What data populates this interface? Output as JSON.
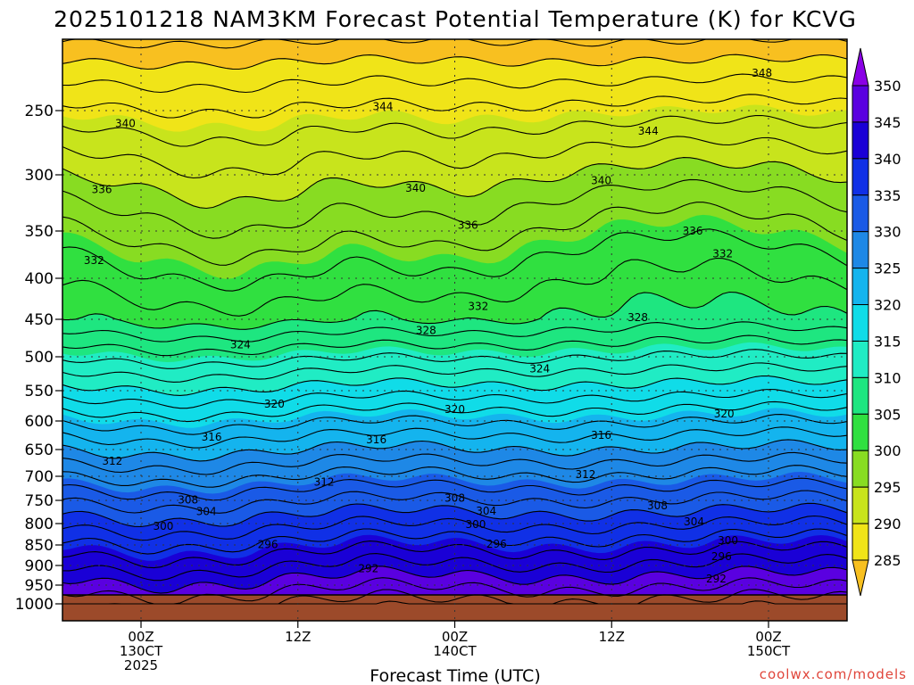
{
  "chart_data": {
    "type": "heatmap",
    "title": "2025101218 NAM3KM Forecast Potential Temperature (K) for KCVG",
    "xlabel": "Forecast Time (UTC)",
    "ylabel": "",
    "credit": "coolwx.com/models",
    "x_unit": "hours from 00Z 13 Oct 2025",
    "xlim": [
      -6,
      54
    ],
    "x_ticks": [
      {
        "value": 0,
        "lines": [
          "00Z",
          "130CT",
          "2025"
        ]
      },
      {
        "value": 12,
        "lines": [
          "12Z"
        ]
      },
      {
        "value": 24,
        "lines": [
          "00Z",
          "140CT"
        ]
      },
      {
        "value": 36,
        "lines": [
          "12Z"
        ]
      },
      {
        "value": 48,
        "lines": [
          "00Z",
          "150CT"
        ]
      }
    ],
    "y_unit": "pressure (hPa)",
    "ylim": [
      1000,
      200
    ],
    "y_ticks": [
      250,
      300,
      350,
      400,
      450,
      500,
      550,
      600,
      650,
      700,
      750,
      800,
      850,
      900,
      950,
      1000
    ],
    "colorbar": {
      "labels": [
        350,
        345,
        340,
        335,
        330,
        325,
        320,
        315,
        310,
        305,
        300,
        295,
        290,
        285
      ],
      "levels": [
        285,
        290,
        295,
        300,
        305,
        310,
        315,
        320,
        325,
        330,
        335,
        340,
        345,
        350
      ],
      "colors": [
        "#8a00e6",
        "#5a00e0",
        "#1a00d6",
        "#1030e6",
        "#1a5ae6",
        "#1e88e6",
        "#14b4ee",
        "#10dce8",
        "#20ecc4",
        "#1ee680",
        "#30e040",
        "#88dc22",
        "#c8e41c",
        "#f0e418",
        "#f8c020"
      ]
    },
    "contour_labels": [
      {
        "value": "348",
        "x": 47.5,
        "p": 221
      },
      {
        "value": "344",
        "x": 18.5,
        "p": 247
      },
      {
        "value": "344",
        "x": 38.8,
        "p": 266
      },
      {
        "value": "340",
        "x": -1.2,
        "p": 260
      },
      {
        "value": "340",
        "x": 21.0,
        "p": 312
      },
      {
        "value": "340",
        "x": 35.2,
        "p": 305
      },
      {
        "value": "336",
        "x": -3.0,
        "p": 313
      },
      {
        "value": "336",
        "x": 25.0,
        "p": 345
      },
      {
        "value": "336",
        "x": 42.2,
        "p": 350
      },
      {
        "value": "332",
        "x": -3.6,
        "p": 381
      },
      {
        "value": "332",
        "x": 25.8,
        "p": 434
      },
      {
        "value": "332",
        "x": 44.5,
        "p": 374
      },
      {
        "value": "328",
        "x": 21.8,
        "p": 465
      },
      {
        "value": "328",
        "x": 38.0,
        "p": 448
      },
      {
        "value": "324",
        "x": 7.6,
        "p": 484
      },
      {
        "value": "324",
        "x": 30.5,
        "p": 518
      },
      {
        "value": "320",
        "x": 10.2,
        "p": 572
      },
      {
        "value": "320",
        "x": 24.0,
        "p": 581
      },
      {
        "value": "320",
        "x": 44.6,
        "p": 588
      },
      {
        "value": "316",
        "x": 5.4,
        "p": 628
      },
      {
        "value": "316",
        "x": 18.0,
        "p": 633
      },
      {
        "value": "316",
        "x": 35.2,
        "p": 625
      },
      {
        "value": "312",
        "x": -2.2,
        "p": 672
      },
      {
        "value": "312",
        "x": 14.0,
        "p": 712
      },
      {
        "value": "312",
        "x": 34.0,
        "p": 697
      },
      {
        "value": "308",
        "x": 3.6,
        "p": 749
      },
      {
        "value": "308",
        "x": 24.0,
        "p": 745
      },
      {
        "value": "308",
        "x": 39.5,
        "p": 762
      },
      {
        "value": "304",
        "x": 5.0,
        "p": 774
      },
      {
        "value": "304",
        "x": 26.4,
        "p": 773
      },
      {
        "value": "304",
        "x": 42.3,
        "p": 796
      },
      {
        "value": "300",
        "x": 1.7,
        "p": 806
      },
      {
        "value": "300",
        "x": 25.6,
        "p": 802
      },
      {
        "value": "300",
        "x": 44.9,
        "p": 840
      },
      {
        "value": "296",
        "x": 9.7,
        "p": 849
      },
      {
        "value": "296",
        "x": 27.2,
        "p": 848
      },
      {
        "value": "296",
        "x": 44.4,
        "p": 878
      },
      {
        "value": "292",
        "x": 17.4,
        "p": 908
      },
      {
        "value": "292",
        "x": 44.0,
        "p": 934
      }
    ]
  }
}
